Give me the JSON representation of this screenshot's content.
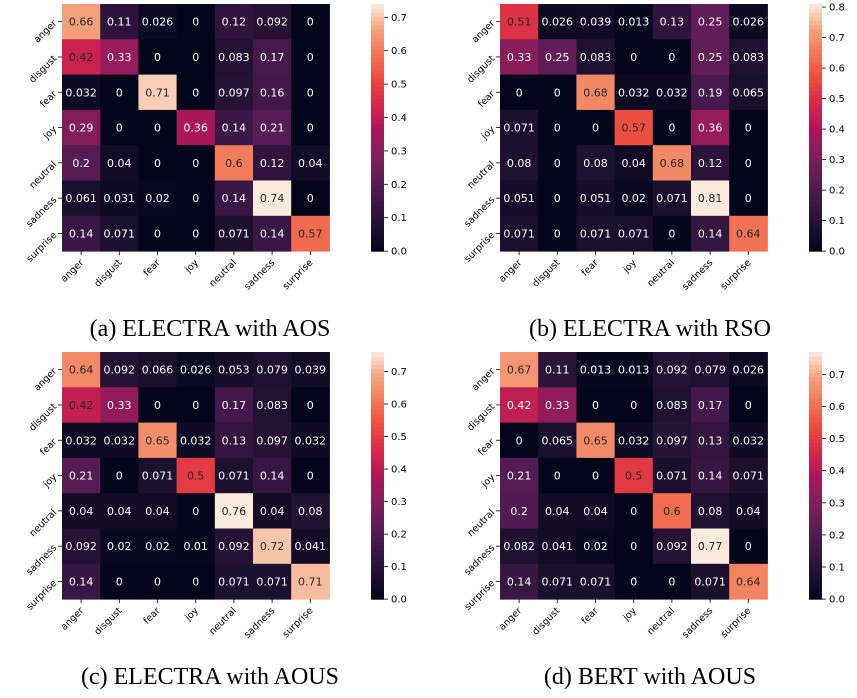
{
  "chart_data": [
    {
      "type": "heatmap",
      "caption": "(a) ELECTRA with AOS",
      "row_labels": [
        "anger",
        "disgust",
        "fear",
        "joy",
        "neutral",
        "sadness",
        "surprise"
      ],
      "col_labels": [
        "anger",
        "disgust",
        "fear",
        "joy",
        "neutral",
        "sadness",
        "surprise"
      ],
      "values": [
        [
          "0.66",
          "0.11",
          "0.026",
          "0",
          "0.12",
          "0.092",
          "0"
        ],
        [
          "0.42",
          "0.33",
          "0",
          "0",
          "0.083",
          "0.17",
          "0"
        ],
        [
          "0.032",
          "0",
          "0.71",
          "0",
          "0.097",
          "0.16",
          "0"
        ],
        [
          "0.29",
          "0",
          "0",
          "0.36",
          "0.14",
          "0.21",
          "0"
        ],
        [
          "0.2",
          "0.04",
          "0",
          "0",
          "0.6",
          "0.12",
          "0.04"
        ],
        [
          "0.061",
          "0.031",
          "0.02",
          "0",
          "0.14",
          "0.74",
          "0"
        ],
        [
          "0.14",
          "0.071",
          "0",
          "0",
          "0.071",
          "0.14",
          "0.57"
        ]
      ],
      "colorbar": {
        "min": 0,
        "max": 0.74,
        "ticks": [
          "0.0",
          "0.1",
          "0.2",
          "0.3",
          "0.4",
          "0.5",
          "0.6",
          "0.7"
        ]
      }
    },
    {
      "type": "heatmap",
      "caption": "(b) ELECTRA with RSO",
      "row_labels": [
        "anger",
        "disgust",
        "fear",
        "joy",
        "neutral",
        "sadness",
        "surprise"
      ],
      "col_labels": [
        "anger",
        "disgust",
        "fear",
        "joy",
        "neutral",
        "sadness",
        "surprise"
      ],
      "values": [
        [
          "0.51",
          "0.026",
          "0.039",
          "0.013",
          "0.13",
          "0.25",
          "0.026"
        ],
        [
          "0.33",
          "0.25",
          "0.083",
          "0",
          "0",
          "0.25",
          "0.083"
        ],
        [
          "0",
          "0",
          "0.68",
          "0.032",
          "0.032",
          "0.19",
          "0.065"
        ],
        [
          "0.071",
          "0",
          "0",
          "0.57",
          "0",
          "0.36",
          "0"
        ],
        [
          "0.08",
          "0",
          "0.08",
          "0.04",
          "0.68",
          "0.12",
          "0"
        ],
        [
          "0.051",
          "0",
          "0.051",
          "0.02",
          "0.071",
          "0.81",
          "0"
        ],
        [
          "0.071",
          "0",
          "0.071",
          "0.071",
          "0",
          "0.14",
          "0.64"
        ]
      ],
      "colorbar": {
        "min": 0,
        "max": 0.81,
        "ticks": [
          "0.0",
          "0.1",
          "0.2",
          "0.3",
          "0.4",
          "0.5",
          "0.6",
          "0.7",
          "0.8"
        ]
      }
    },
    {
      "type": "heatmap",
      "caption": "(c) ELECTRA with AOUS",
      "row_labels": [
        "anger",
        "disgust",
        "fear",
        "joy",
        "neutral",
        "sadness",
        "surprise"
      ],
      "col_labels": [
        "anger",
        "disgust",
        "fear",
        "joy",
        "neutral",
        "sadness",
        "surprise"
      ],
      "values": [
        [
          "0.64",
          "0.092",
          "0.066",
          "0.026",
          "0.053",
          "0.079",
          "0.039"
        ],
        [
          "0.42",
          "0.33",
          "0",
          "0",
          "0.17",
          "0.083",
          "0"
        ],
        [
          "0.032",
          "0.032",
          "0.65",
          "0.032",
          "0.13",
          "0.097",
          "0.032"
        ],
        [
          "0.21",
          "0",
          "0.071",
          "0.5",
          "0.071",
          "0.14",
          "0"
        ],
        [
          "0.04",
          "0.04",
          "0.04",
          "0",
          "0.76",
          "0.04",
          "0.08"
        ],
        [
          "0.092",
          "0.02",
          "0.02",
          "0.01",
          "0.092",
          "0.72",
          "0.041"
        ],
        [
          "0.14",
          "0",
          "0",
          "0",
          "0.071",
          "0.071",
          "0.71"
        ]
      ],
      "colorbar": {
        "min": 0,
        "max": 0.76,
        "ticks": [
          "0.0",
          "0.1",
          "0.2",
          "0.3",
          "0.4",
          "0.5",
          "0.6",
          "0.7"
        ]
      }
    },
    {
      "type": "heatmap",
      "caption": "(d) BERT with AOUS",
      "row_labels": [
        "anger",
        "disgust",
        "fear",
        "joy",
        "neutral",
        "sadness",
        "surprise"
      ],
      "col_labels": [
        "anger",
        "disgust",
        "fear",
        "joy",
        "neutral",
        "sadness",
        "surprise"
      ],
      "values": [
        [
          "0.67",
          "0.11",
          "0.013",
          "0.013",
          "0.092",
          "0.079",
          "0.026"
        ],
        [
          "0.42",
          "0.33",
          "0",
          "0",
          "0.083",
          "0.17",
          "0"
        ],
        [
          "0",
          "0.065",
          "0.65",
          "0.032",
          "0.097",
          "0.13",
          "0.032"
        ],
        [
          "0.21",
          "0",
          "0",
          "0.5",
          "0.071",
          "0.14",
          "0.071"
        ],
        [
          "0.2",
          "0.04",
          "0.04",
          "0",
          "0.6",
          "0.08",
          "0.04"
        ],
        [
          "0.082",
          "0.041",
          "0.02",
          "0",
          "0.092",
          "0.77",
          "0"
        ],
        [
          "0.14",
          "0.071",
          "0.071",
          "0",
          "0",
          "0.071",
          "0.64"
        ]
      ],
      "colorbar": {
        "min": 0,
        "max": 0.77,
        "ticks": [
          "0.0",
          "0.1",
          "0.2",
          "0.3",
          "0.4",
          "0.5",
          "0.6",
          "0.7"
        ]
      }
    }
  ]
}
